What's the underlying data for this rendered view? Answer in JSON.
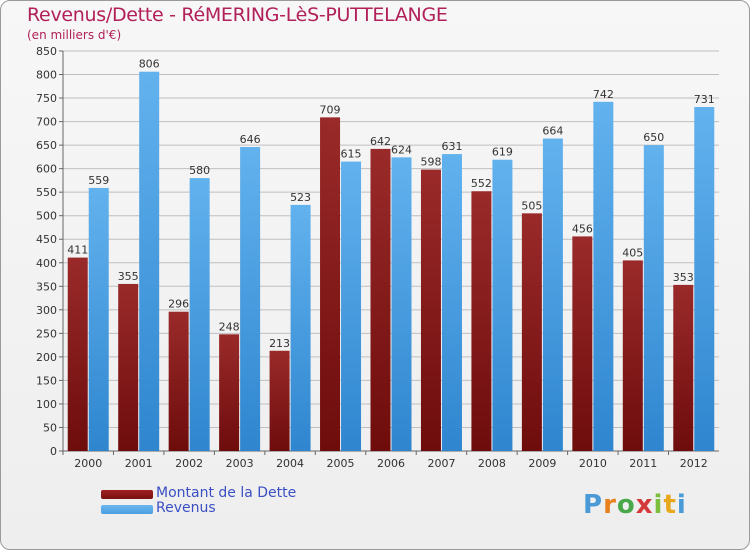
{
  "header": {
    "title": "Revenus/Dette - RéMERING-LèS-PUTTELANGE",
    "subtitle": "(en milliers d'€)"
  },
  "legend": {
    "items": [
      {
        "label": "Montant de la Dette",
        "color": "#7a1010"
      },
      {
        "label": "Revenus",
        "color": "#4a9ee0"
      }
    ]
  },
  "logo": {
    "text": "Proxiti"
  },
  "colors": {
    "debt_bar": "#6e0c0c",
    "revenue_bar": "#4a9ee0",
    "axis_text": "#333333",
    "grid": "#bfbfbf"
  },
  "chart_data": {
    "type": "bar",
    "categories": [
      "2000",
      "2001",
      "2002",
      "2003",
      "2004",
      "2005",
      "2006",
      "2007",
      "2008",
      "2009",
      "2010",
      "2011",
      "2012"
    ],
    "series": [
      {
        "name": "Montant de la Dette",
        "values": [
          411,
          355,
          296,
          248,
          213,
          709,
          642,
          598,
          552,
          505,
          456,
          405,
          353
        ]
      },
      {
        "name": "Revenus",
        "values": [
          559,
          806,
          580,
          646,
          523,
          615,
          624,
          631,
          619,
          664,
          742,
          650,
          731
        ]
      }
    ],
    "ylim": [
      0,
      850
    ],
    "yticks": [
      0,
      50,
      100,
      150,
      200,
      250,
      300,
      350,
      400,
      450,
      500,
      550,
      600,
      650,
      700,
      750,
      800,
      850
    ],
    "grid": true,
    "data_labels": true,
    "legend_position": "bottom-left"
  }
}
